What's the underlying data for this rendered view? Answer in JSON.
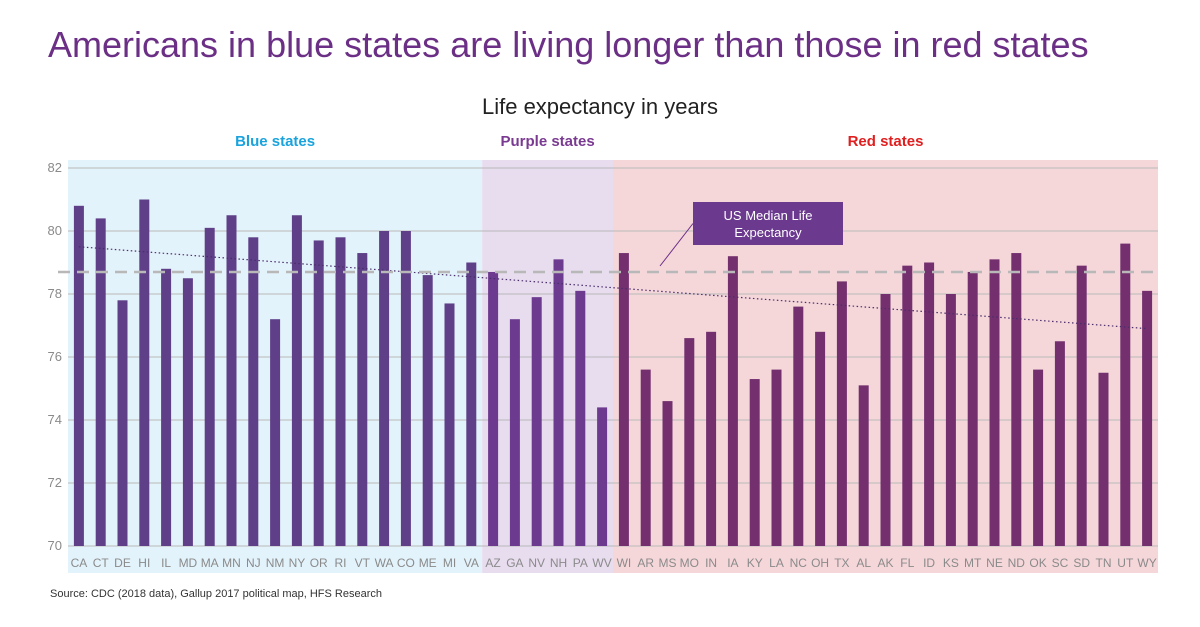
{
  "title": "Americans in blue states are living longer than those in red states",
  "source": "Source: CDC (2018 data), Gallup 2017 political map, HFS Research",
  "chart_data": {
    "type": "bar",
    "title": "Life expectancy in years",
    "ylim": [
      70,
      82
    ],
    "yticks": [
      70,
      72,
      74,
      76,
      78,
      80,
      82
    ],
    "grid": true,
    "categories": [
      "CA",
      "CT",
      "DE",
      "HI",
      "IL",
      "MD",
      "MA",
      "MN",
      "NJ",
      "NM",
      "NY",
      "OR",
      "RI",
      "VT",
      "WA",
      "CO",
      "ME",
      "MI",
      "VA",
      "AZ",
      "GA",
      "NV",
      "NH",
      "PA",
      "WV",
      "WI",
      "AR",
      "MS",
      "MO",
      "IN",
      "IA",
      "KY",
      "LA",
      "NC",
      "OH",
      "TX",
      "AL",
      "AK",
      "FL",
      "ID",
      "KS",
      "MT",
      "NE",
      "ND",
      "OK",
      "SC",
      "SD",
      "TN",
      "UT",
      "WY"
    ],
    "values": [
      80.8,
      80.4,
      77.8,
      81.0,
      78.8,
      78.5,
      80.1,
      80.5,
      79.8,
      77.2,
      80.5,
      79.7,
      79.8,
      79.3,
      80.0,
      80.0,
      78.6,
      77.7,
      79.0,
      78.7,
      77.2,
      77.9,
      79.1,
      78.1,
      74.4,
      79.3,
      75.6,
      74.6,
      76.6,
      76.8,
      79.2,
      75.3,
      75.6,
      77.6,
      76.8,
      78.4,
      75.1,
      78.0,
      78.9,
      79.0,
      78.0,
      78.7,
      79.1,
      79.3,
      75.6,
      76.5,
      78.9,
      75.5,
      79.6,
      78.1
    ],
    "groups": [
      {
        "label": "Blue states",
        "start": 0,
        "end": 18,
        "label_color": "#1aa3dd",
        "bg": "#e3f3fb",
        "bar": "#5e3f88"
      },
      {
        "label": "Purple states",
        "start": 19,
        "end": 24,
        "label_color": "#7a3a92",
        "bg": "#e8dcef",
        "bar": "#6c3a8f"
      },
      {
        "label": "Red states",
        "start": 25,
        "end": 49,
        "label_color": "#e02020",
        "bg": "#f5d7da",
        "bar": "#74306e"
      }
    ],
    "median": 78.7,
    "median_label_line1": "US Median Life",
    "median_label_line2": "Expectancy",
    "trendline": {
      "start": 79.5,
      "end": 76.9
    }
  }
}
